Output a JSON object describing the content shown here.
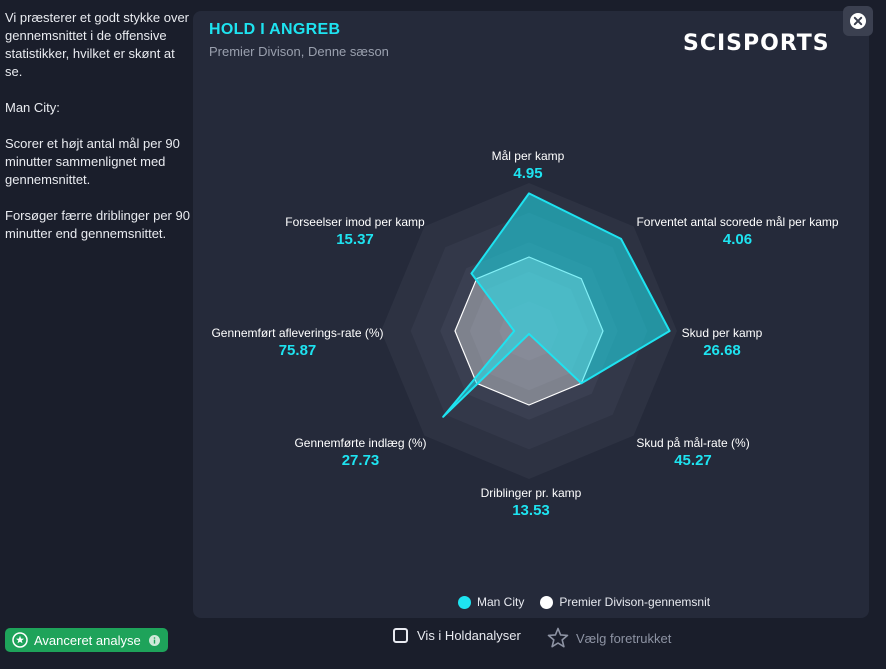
{
  "explanation": {
    "paragraphs": [
      "Vi præsterer et godt stykke over gennemsnittet i de offensive statistikker, hvilket er skønt at se.",
      "Man City:",
      "Scorer et højt antal mål per 90 minutter sammenlignet med gennemsnittet.",
      "Forsøger færre driblinger per 90 minutter end gennemsnittet."
    ]
  },
  "panel": {
    "title": "HOLD I ANGREB",
    "subtitle": "Premier Divison, Denne sæson",
    "logo": "SCISPORTS"
  },
  "chart_data": {
    "type": "radar",
    "axes": [
      {
        "label": "Mål per kamp",
        "value": "4.95"
      },
      {
        "label": "Forventet antal scorede mål per kamp",
        "value": "4.06"
      },
      {
        "label": "Skud per kamp",
        "value": "26.68"
      },
      {
        "label": "Skud på mål-rate (%)",
        "value": "45.27"
      },
      {
        "label": "Driblinger pr. kamp",
        "value": "13.53"
      },
      {
        "label": "Gennemførte indlæg (%)",
        "value": "27.73"
      },
      {
        "label": "Gennemført afleverings-rate (%)",
        "value": "75.87"
      },
      {
        "label": "Forseelser imod per kamp",
        "value": "15.37"
      }
    ],
    "series": [
      {
        "name": "Man City",
        "color": "#1ee3f0",
        "values": [
          0.93,
          0.88,
          0.95,
          0.5,
          0.02,
          0.82,
          0.1,
          0.55
        ]
      },
      {
        "name": "Premier Divison-gennemsnit",
        "color": "#ffffff",
        "values": [
          0.5,
          0.5,
          0.5,
          0.5,
          0.5,
          0.5,
          0.5,
          0.5
        ]
      }
    ],
    "rings": 5
  },
  "legend": {
    "team": "Man City",
    "average": "Premier Divison-gennemsnit"
  },
  "footer": {
    "advanced_label": "Avanceret analyse",
    "show_label": "Vis i Holdanalyser",
    "favorite_label": "Vælg foretrukket"
  },
  "icons": {
    "close": "close-icon",
    "advanced": "star-circle-icon",
    "info": "info-icon",
    "favorite": "star-outline-icon"
  }
}
